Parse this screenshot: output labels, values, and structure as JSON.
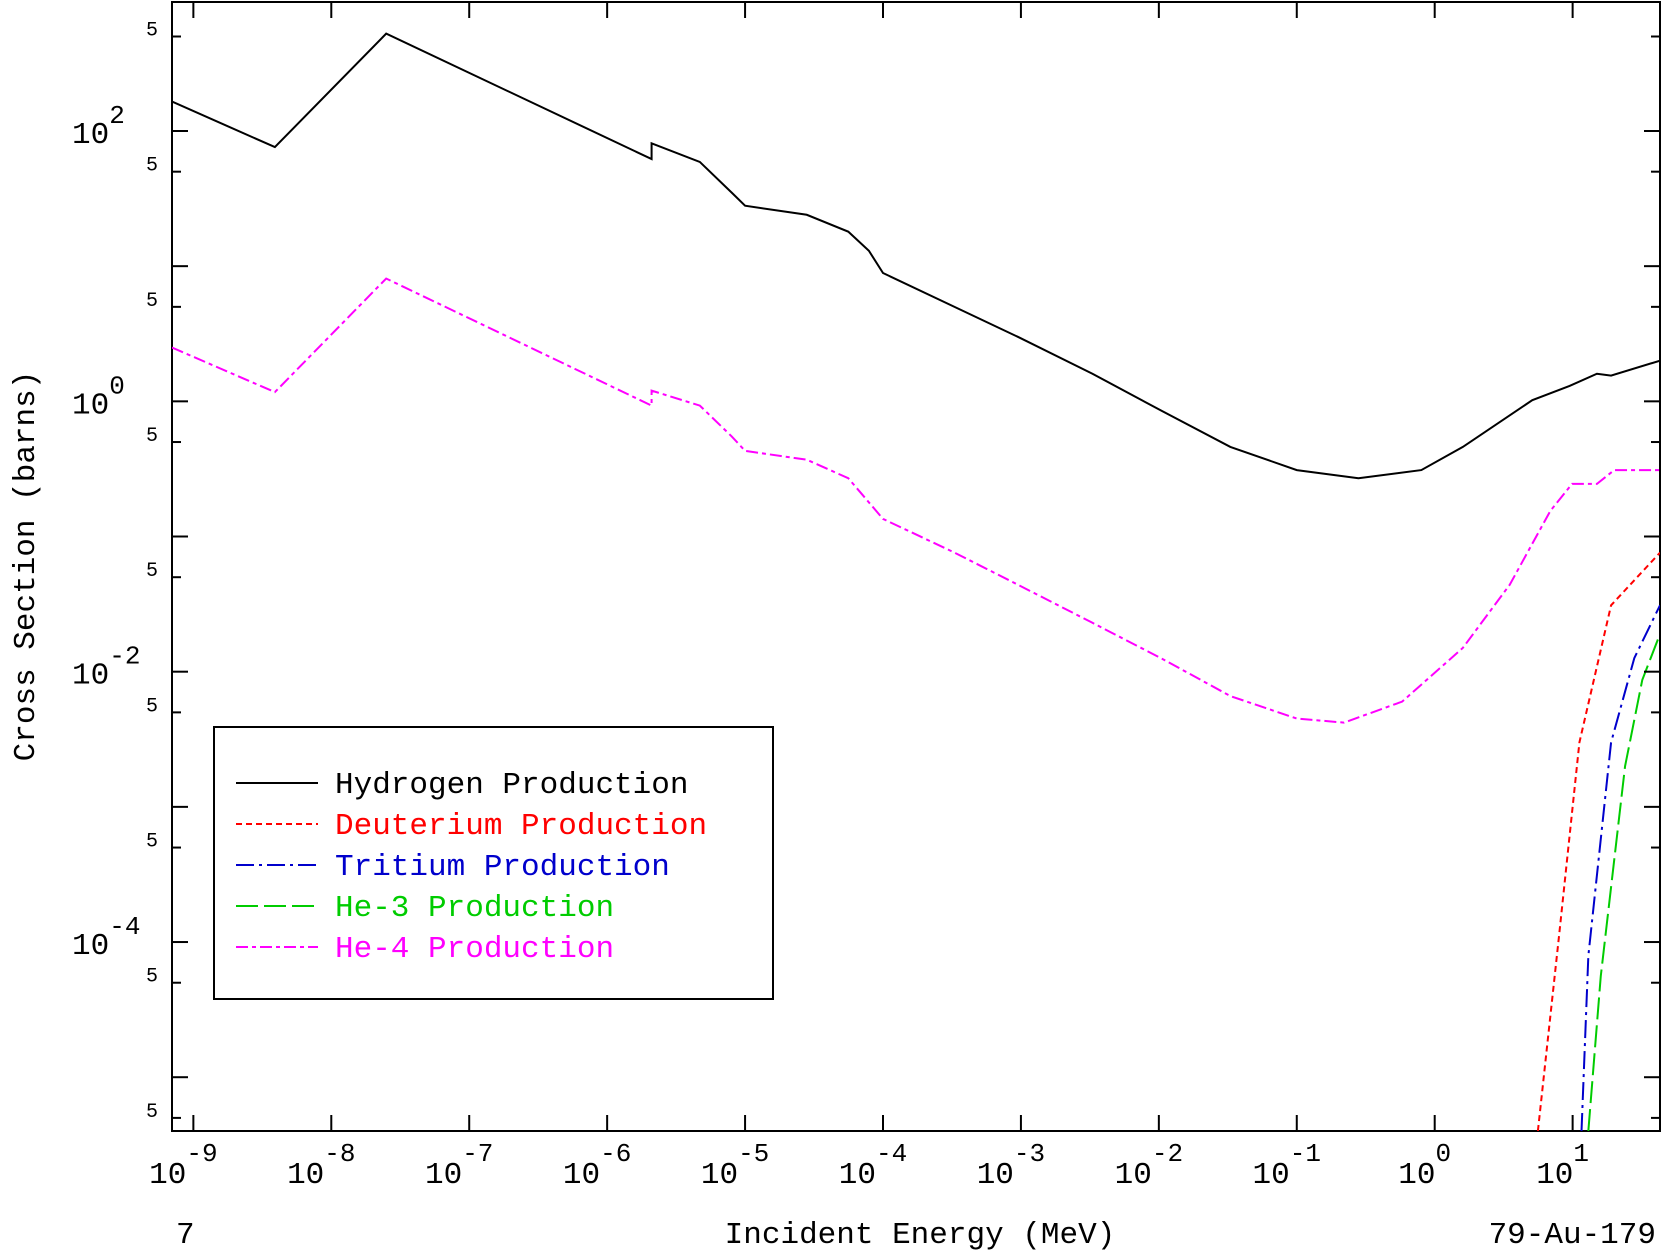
{
  "chart_data": {
    "type": "line",
    "x_label": "Incident Energy (MeV)",
    "y_label": "Cross Section (barns)",
    "footer_left": "7",
    "footer_right": "79-Au-179",
    "log_x": true,
    "log_y": true,
    "legend": "lower left",
    "xlim": [
      7e-10,
      43
    ],
    "ylim": [
      4e-06,
      900
    ],
    "xticks": [
      {
        "value": 1e-09,
        "label": "10",
        "exponent": "-9"
      },
      {
        "value": 1e-08,
        "label": "10",
        "exponent": "-8"
      },
      {
        "value": 1e-07,
        "label": "10",
        "exponent": "-7"
      },
      {
        "value": 1e-06,
        "label": "10",
        "exponent": "-6"
      },
      {
        "value": 1e-05,
        "label": "10",
        "exponent": "-5"
      },
      {
        "value": 0.0001,
        "label": "10",
        "exponent": "-4"
      },
      {
        "value": 0.001,
        "label": "10",
        "exponent": "-3"
      },
      {
        "value": 0.01,
        "label": "10",
        "exponent": "-2"
      },
      {
        "value": 0.1,
        "label": "10",
        "exponent": "-1"
      },
      {
        "value": 1,
        "label": "10",
        "exponent": "0"
      },
      {
        "value": 10,
        "label": "10",
        "exponent": "1"
      }
    ],
    "yticks": [
      {
        "value": 500,
        "label": "5"
      },
      {
        "value": 100,
        "label": "10",
        "exponent": "2"
      },
      {
        "value": 50,
        "label": "5"
      },
      {
        "value": 5,
        "label": "5"
      },
      {
        "value": 1,
        "label": "10",
        "exponent": "0"
      },
      {
        "value": 0.5,
        "label": "5"
      },
      {
        "value": 0.05,
        "label": "5"
      },
      {
        "value": 0.01,
        "label": "10",
        "exponent": "-2"
      },
      {
        "value": 0.005,
        "label": "5"
      },
      {
        "value": 0.0005,
        "label": "5"
      },
      {
        "value": 0.0001,
        "label": "10",
        "exponent": "-4"
      },
      {
        "value": 5e-05,
        "label": "5"
      },
      {
        "value": 5e-06,
        "label": "5"
      }
    ],
    "yticks_unlabeled": [
      10,
      0.1,
      0.001,
      1e-05
    ],
    "series": [
      {
        "name": "Hydrogen Production",
        "color": "#000000",
        "dash": "none",
        "x": [
          7e-10,
          3.9e-09,
          2.5e-08,
          2.1e-06,
          2.1e-06,
          4.7e-06,
          8e-06,
          1e-05,
          2.8e-05,
          5.6e-05,
          7.9e-05,
          0.0001,
          0.00033,
          0.00095,
          0.0033,
          0.0105,
          0.033,
          0.1,
          0.28,
          0.8,
          1.6,
          5.1,
          9.5,
          15,
          19,
          43
        ],
        "values": [
          165,
          76,
          525,
          62,
          81,
          59,
          35,
          28,
          24,
          18,
          13,
          8.9,
          5,
          3.0,
          1.6,
          0.85,
          0.46,
          0.31,
          0.27,
          0.31,
          0.46,
          1.02,
          1.3,
          1.6,
          1.55,
          2.0
        ]
      },
      {
        "name": "Deuterium Production",
        "color": "#ff0000",
        "dash": "6,4",
        "x": [
          5.6,
          8,
          11.2,
          19,
          43
        ],
        "values": [
          4e-06,
          0.000115,
          0.003,
          0.031,
          0.076
        ]
      },
      {
        "name": "Tritium Production",
        "color": "#0000cc",
        "dash": "18,5,3,5",
        "x": [
          11.6,
          13,
          19,
          28,
          43
        ],
        "values": [
          4e-06,
          7.9e-05,
          0.003,
          0.0126,
          0.031
        ]
      },
      {
        "name": "He-3 Production",
        "color": "#00cc00",
        "dash": "22,6",
        "x": [
          13,
          16,
          24,
          32,
          43
        ],
        "values": [
          4e-06,
          5.6e-05,
          0.002,
          0.0087,
          0.019
        ]
      },
      {
        "name": "He-4 Production",
        "color": "#ff00ff",
        "dash": "12,4,4,4",
        "x": [
          7e-10,
          3.9e-09,
          2.5e-08,
          2.1e-06,
          2.1e-06,
          4.7e-06,
          8e-06,
          1e-05,
          2.8e-05,
          5.6e-05,
          0.0001,
          0.00033,
          0.00095,
          0.0033,
          0.0105,
          0.033,
          0.1,
          0.22,
          0.58,
          1.6,
          3.5,
          6.9,
          9.9,
          15,
          20,
          43
        ],
        "values": [
          2.5,
          1.17,
          8.1,
          0.93,
          1.2,
          0.93,
          0.55,
          0.43,
          0.37,
          0.27,
          0.135,
          0.076,
          0.044,
          0.023,
          0.0125,
          0.0066,
          0.0045,
          0.0042,
          0.006,
          0.015,
          0.044,
          0.155,
          0.245,
          0.245,
          0.31,
          0.31
        ]
      }
    ]
  }
}
